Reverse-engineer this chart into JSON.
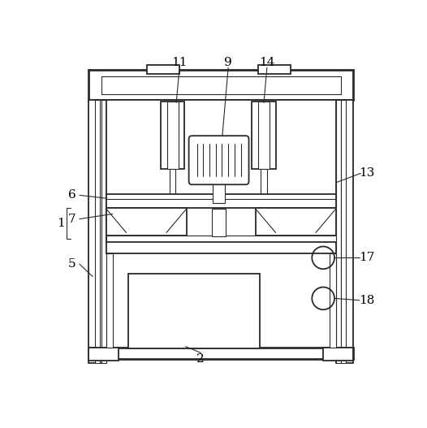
{
  "bg_color": "#ffffff",
  "line_color": "#2a2a2a",
  "lw_thick": 2.0,
  "lw_med": 1.3,
  "lw_thin": 0.8,
  "fig_width": 5.26,
  "fig_height": 5.27
}
